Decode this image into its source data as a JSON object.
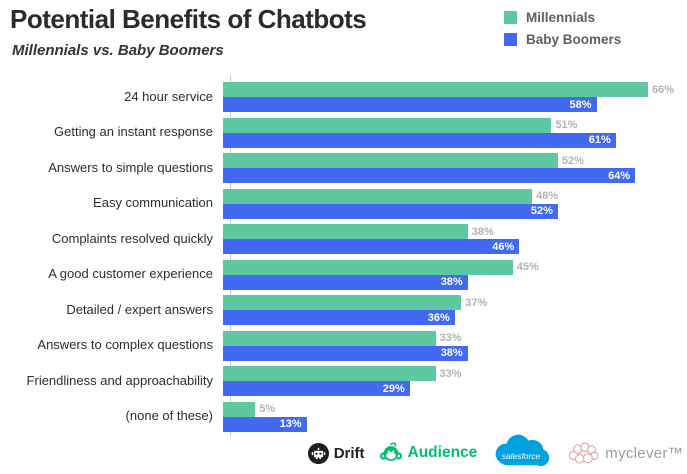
{
  "chart_data": {
    "type": "bar",
    "orientation": "horizontal",
    "title": "Potential Benefits of Chatbots",
    "subtitle": "Millennials vs. Baby Boomers",
    "value_suffix": "%",
    "xlim": [
      0,
      70
    ],
    "grid": false,
    "legend_position": "top-right",
    "categories": [
      "24 hour service",
      "Getting an instant response",
      "Answers to simple questions",
      "Easy communication",
      "Complaints resolved quickly",
      "A good customer experience",
      "Detailed / expert answers",
      "Answers to complex questions",
      "Friendliness and approachability",
      "(none of these)"
    ],
    "series": [
      {
        "name": "Millennials",
        "color": "#5EC9A0",
        "value_label_style": "outside-gray",
        "values": [
          66,
          51,
          52,
          48,
          38,
          45,
          37,
          33,
          33,
          5
        ]
      },
      {
        "name": "Baby Boomers",
        "color": "#4169F1",
        "value_label_style": "inside-white",
        "values": [
          58,
          61,
          64,
          52,
          46,
          38,
          36,
          38,
          29,
          13
        ]
      }
    ]
  },
  "colors": {
    "background": "#ffffff",
    "title_text": "#2b2b2b",
    "axis_line": "#c8c8c8",
    "outside_value_label": "#b3b3b3",
    "inside_value_label": "#ffffff",
    "legend_text": "#5d5f64"
  },
  "footer": {
    "logos": [
      {
        "name": "drift",
        "text": "Drift",
        "color": "#1e1e1e"
      },
      {
        "name": "audience",
        "text": "Audience",
        "color": "#00BF6F"
      },
      {
        "name": "salesforce",
        "text": "salesforce",
        "color": "#00A1E0"
      },
      {
        "name": "myclever",
        "text": "myclever™",
        "color": "#E2A9B2"
      }
    ]
  }
}
